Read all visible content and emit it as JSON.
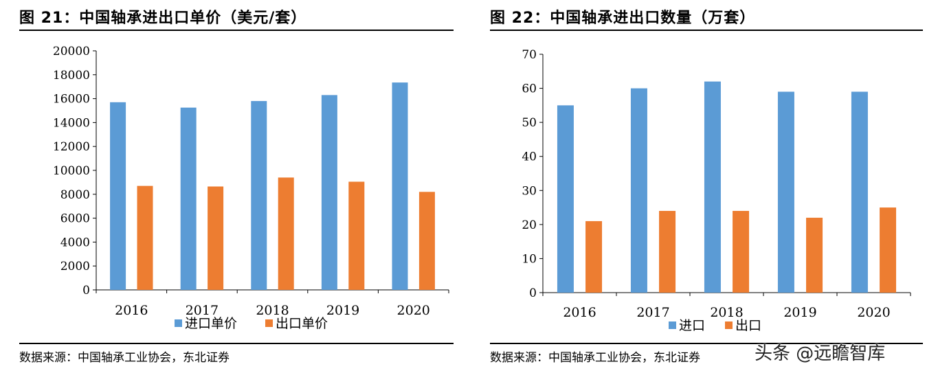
{
  "charts": [
    {
      "title": "图 21：中国轴承进出口单价（美元/套）",
      "source": "数据来源：中国轴承工业协会，东北证券",
      "chart_data": {
        "type": "bar",
        "title": "中国轴承进出口单价（美元/套）",
        "xlabel": "",
        "ylabel": "",
        "categories": [
          "2016",
          "2017",
          "2018",
          "2019",
          "2020"
        ],
        "series": [
          {
            "name": "进口单价",
            "color": "#5b9bd5",
            "values": [
              15700,
              15250,
              15800,
              16300,
              17350
            ]
          },
          {
            "name": "出口单价",
            "color": "#ed7d31",
            "values": [
              8700,
              8650,
              9400,
              9050,
              8200
            ]
          }
        ],
        "ylim": [
          0,
          20000
        ],
        "yticks": [
          "0",
          "2000",
          "4000",
          "6000",
          "8000",
          "10000",
          "12000",
          "14000",
          "16000",
          "18000",
          "20000"
        ],
        "legend": "bottom",
        "grid": false
      }
    },
    {
      "title": "图 22：中国轴承进出口数量（万套）",
      "source": "数据来源：中国轴承工业协会，东北证券",
      "chart_data": {
        "type": "bar",
        "title": "中国轴承进出口数量（万套）",
        "xlabel": "",
        "ylabel": "",
        "categories": [
          "2016",
          "2017",
          "2018",
          "2019",
          "2020"
        ],
        "series": [
          {
            "name": "进口",
            "color": "#5b9bd5",
            "values": [
              55,
              60,
              62,
              59,
              59
            ]
          },
          {
            "name": "出口",
            "color": "#ed7d31",
            "values": [
              21,
              24,
              24,
              22,
              25
            ]
          }
        ],
        "ylim": [
          0,
          70
        ],
        "yticks": [
          "0",
          "10",
          "20",
          "30",
          "40",
          "50",
          "60",
          "70"
        ],
        "legend": "bottom",
        "grid": false
      }
    }
  ],
  "watermark": "头条 @远瞻智库"
}
